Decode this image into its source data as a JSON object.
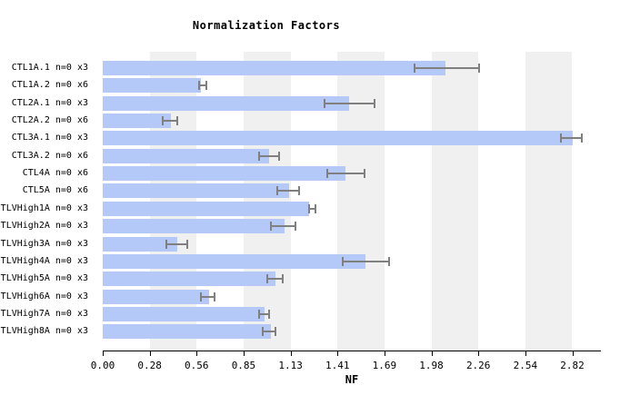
{
  "title": "Normalization Factors",
  "chart_data": {
    "type": "bar",
    "orientation": "horizontal",
    "title": "Normalization Factors",
    "xlabel": "NF",
    "xlim": [
      0,
      2.82
    ],
    "x_tick_step": 0.282,
    "x_ticks": [
      "0.00",
      "0.28",
      "0.56",
      "0.85",
      "1.13",
      "1.41",
      "1.69",
      "1.98",
      "2.26",
      "2.54",
      "2.82"
    ],
    "grid": "alternating vertical gray bands between odd tick pairs",
    "legend": "none",
    "categories": [
      "CTL1A.1 n=0 x3",
      "CTL1A.2 n=0 x6",
      "CTL2A.1 n=0 x3",
      "CTL2A.2 n=0 x6",
      "CTL3A.1 n=0 x3",
      "CTL3A.2 n=0 x6",
      "CTL4A n=0 x6",
      "CTL5A n=0 x6",
      "TLVHigh1A n=0 x3",
      "TLVHigh2A n=0 x3",
      "TLVHigh3A n=0 x3",
      "TLVHigh4A n=0 x3",
      "TLVHigh5A n=0 x3",
      "TLVHigh6A n=0 x3",
      "TLVHigh7A n=0 x3",
      "TLVHigh8A n=0 x3"
    ],
    "values": [
      2.06,
      0.59,
      1.48,
      0.41,
      2.82,
      1.0,
      1.46,
      1.12,
      1.24,
      1.09,
      0.45,
      1.58,
      1.04,
      0.64,
      0.97,
      1.01
    ],
    "error_low": [
      1.87,
      0.58,
      1.33,
      0.36,
      2.75,
      0.94,
      1.35,
      1.05,
      1.24,
      1.01,
      0.38,
      1.44,
      0.99,
      0.59,
      0.94,
      0.96
    ],
    "error_high": [
      2.26,
      0.62,
      1.63,
      0.45,
      2.88,
      1.06,
      1.57,
      1.18,
      1.28,
      1.16,
      0.51,
      1.72,
      1.08,
      0.67,
      1.0,
      1.04
    ],
    "colors": {
      "bar": "#b4c9f8",
      "band": "#f0f0f0",
      "error_bar": "#808080",
      "axis": "#000000",
      "background": "#ffffff"
    }
  }
}
